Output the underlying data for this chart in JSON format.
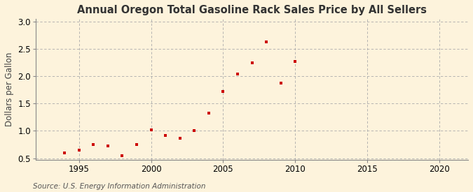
{
  "title": "Annual Oregon Total Gasoline Rack Sales Price by All Sellers",
  "ylabel": "Dollars per Gallon",
  "source": "Source: U.S. Energy Information Administration",
  "background_color": "#fdf3dc",
  "marker_color": "#cc0000",
  "years": [
    1994,
    1995,
    1996,
    1997,
    1998,
    1999,
    2000,
    2001,
    2002,
    2003,
    2004,
    2005,
    2006,
    2007,
    2008,
    2009,
    2010
  ],
  "values": [
    0.6,
    0.65,
    0.75,
    0.73,
    0.55,
    0.75,
    1.02,
    0.92,
    0.86,
    1.01,
    1.33,
    1.72,
    2.04,
    2.25,
    2.63,
    1.88,
    2.27
  ],
  "xlim": [
    1992,
    2022
  ],
  "ylim": [
    0.47,
    3.05
  ],
  "xticks": [
    1995,
    2000,
    2005,
    2010,
    2015,
    2020
  ],
  "yticks": [
    0.5,
    1.0,
    1.5,
    2.0,
    2.5,
    3.0
  ],
  "title_fontsize": 10.5,
  "label_fontsize": 8.5,
  "tick_fontsize": 8.5,
  "source_fontsize": 7.5
}
